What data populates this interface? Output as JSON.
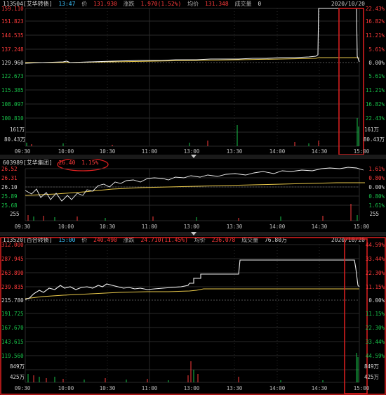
{
  "panel1": {
    "code_name": "113504[艾华转债]",
    "time": "13:47",
    "price_label": "价",
    "price": "131.930",
    "change_label": "涨跌",
    "change": "1.970(1.52%)",
    "avg_label": "均价",
    "avg": "131.348",
    "volume_label": "成交量",
    "volume": "0",
    "date": "2020/10/20",
    "left_axis": [
      "159.110",
      "151.823",
      "144.535",
      "137.248",
      "129.960",
      "122.673",
      "115.385",
      "108.097",
      "100.810"
    ],
    "right_axis": [
      "22.43%",
      "16.82%",
      "11.21%",
      "5.61%",
      "0.00%",
      "5.61%",
      "11.21%",
      "16.82%",
      "22.43%"
    ],
    "vol_left": [
      "161万",
      "80.43万"
    ],
    "vol_right": [
      "161万",
      "80.43万"
    ]
  },
  "panel2": {
    "code_name": "603989[艾华集团]",
    "price": "26.40",
    "change_pct": "1.15%",
    "left_axis": [
      "26.52",
      "26.31",
      "26.10",
      "25.89",
      "25.68"
    ],
    "right_axis": [
      "1.61%",
      "0.80%",
      "0.00%",
      "0.80%",
      "1.61%"
    ],
    "vol_left": "255",
    "vol_right": "255"
  },
  "panel3": {
    "code_name": "113520[百合转债]",
    "time": "15:00",
    "price_label": "价",
    "price": "240.490",
    "change_label": "涨跌",
    "change": "24.710(11.45%)",
    "avg_label": "均价",
    "avg": "236.078",
    "volume_label": "成交量",
    "volume": "76.80万",
    "date": "2020/10/20",
    "left_axis": [
      "312.000",
      "287.945",
      "263.890",
      "239.835",
      "215.780",
      "191.725",
      "167.670",
      "143.615",
      "119.560"
    ],
    "right_axis": [
      "44.59%",
      "33.44%",
      "22.30%",
      "11.15%",
      "0.00%",
      "11.15%",
      "22.30%",
      "33.44%",
      "44.59%"
    ],
    "vol_left": [
      "849万",
      "425万"
    ],
    "vol_right": [
      "849万",
      "425万"
    ]
  },
  "time_axis": [
    "09:30",
    "10:00",
    "10:30",
    "11:00",
    "13:00",
    "13:30",
    "14:00",
    "14:30",
    "15:00"
  ],
  "colors": {
    "up": "#ff3b3b",
    "down": "#19c34a",
    "price_line": "#f2f2f2",
    "avg_line": "#e8c84a",
    "highlight": "#e02020"
  }
}
